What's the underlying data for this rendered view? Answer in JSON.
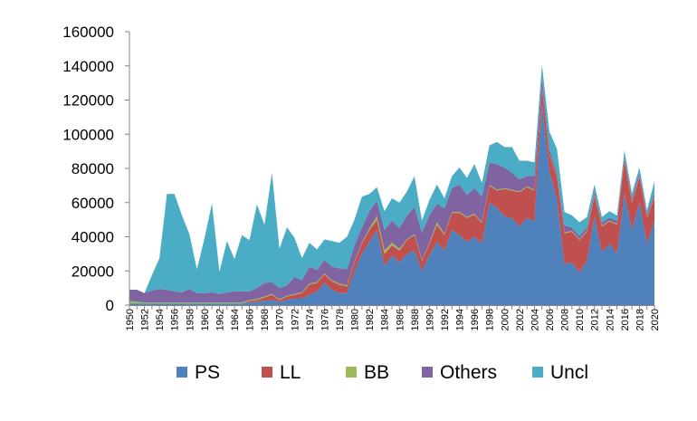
{
  "chart_data": {
    "type": "area",
    "stacked": true,
    "legend_position": "bottom",
    "grid": false,
    "ylim": [
      0,
      160000
    ],
    "y_ticks": [
      0,
      20000,
      40000,
      60000,
      80000,
      100000,
      120000,
      140000,
      160000
    ],
    "y_tick_labels": [
      "0",
      "20000",
      "40000",
      "60000",
      "80000",
      "100000",
      "120000",
      "140000",
      "160000"
    ],
    "x": [
      1950,
      1951,
      1952,
      1953,
      1954,
      1955,
      1956,
      1957,
      1958,
      1959,
      1960,
      1961,
      1962,
      1963,
      1964,
      1965,
      1966,
      1967,
      1968,
      1969,
      1970,
      1971,
      1972,
      1973,
      1974,
      1975,
      1976,
      1977,
      1978,
      1979,
      1980,
      1981,
      1982,
      1983,
      1984,
      1985,
      1986,
      1987,
      1988,
      1989,
      1990,
      1991,
      1992,
      1993,
      1994,
      1995,
      1996,
      1997,
      1998,
      1999,
      2000,
      2001,
      2002,
      2003,
      2004,
      2005,
      2006,
      2007,
      2008,
      2009,
      2010,
      2011,
      2012,
      2013,
      2014,
      2015,
      2016,
      2017,
      2018,
      2019,
      2020
    ],
    "x_tick_labels": [
      "1950",
      "1952",
      "1954",
      "1956",
      "1958",
      "1960",
      "1962",
      "1964",
      "1966",
      "1968",
      "1970",
      "1972",
      "1974",
      "1976",
      "1978",
      "1980",
      "1982",
      "1984",
      "1986",
      "1988",
      "1990",
      "1992",
      "1994",
      "1996",
      "1998",
      "2000",
      "2002",
      "2004",
      "2006",
      "2008",
      "2010",
      "2012",
      "2014",
      "2016",
      "2018",
      "2020"
    ],
    "series": [
      {
        "name": "PS",
        "color": "#4F81BD",
        "values": [
          1000,
          1000,
          1000,
          1000,
          1000,
          1000,
          1000,
          1000,
          1000,
          1000,
          1000,
          1000,
          1000,
          1000,
          1000,
          1000,
          1500,
          2000,
          2500,
          3000,
          2000,
          3000,
          4000,
          4000,
          6000,
          8000,
          13000,
          9000,
          7000,
          7000,
          20000,
          30000,
          37000,
          44000,
          23000,
          29000,
          25000,
          30000,
          32000,
          20000,
          29000,
          37000,
          32000,
          44000,
          41000,
          37000,
          40000,
          36000,
          60000,
          57000,
          52000,
          51000,
          46000,
          51000,
          49000,
          118000,
          78000,
          62000,
          24000,
          25000,
          19000,
          26000,
          52000,
          31000,
          36000,
          30000,
          65000,
          44000,
          60000,
          36000,
          49000
        ]
      },
      {
        "name": "LL",
        "color": "#C0504D",
        "values": [
          0,
          0,
          0,
          0,
          0,
          0,
          0,
          0,
          0,
          0,
          0,
          0,
          0,
          0,
          0,
          0,
          1000,
          1000,
          2000,
          3000,
          1000,
          2000,
          2000,
          3000,
          6000,
          5000,
          5000,
          5000,
          5000,
          4000,
          5000,
          6000,
          7000,
          6000,
          7000,
          6000,
          7000,
          8000,
          9000,
          6000,
          7000,
          10000,
          9000,
          10000,
          13000,
          14000,
          13000,
          12000,
          10000,
          10000,
          16000,
          16000,
          20000,
          18000,
          18000,
          9000,
          10000,
          13000,
          18000,
          18000,
          19000,
          17000,
          12000,
          15000,
          13000,
          17000,
          20000,
          16000,
          15000,
          15000,
          14000
        ]
      },
      {
        "name": "BB",
        "color": "#9BBB59",
        "values": [
          1500,
          1000,
          500,
          500,
          500,
          500,
          500,
          500,
          500,
          500,
          500,
          500,
          500,
          500,
          500,
          500,
          500,
          500,
          500,
          500,
          500,
          500,
          500,
          500,
          500,
          500,
          500,
          500,
          500,
          500,
          500,
          500,
          1000,
          2000,
          2000,
          1500,
          1000,
          500,
          500,
          500,
          500,
          1500,
          500,
          500,
          500,
          500,
          500,
          500,
          500,
          500,
          500,
          500,
          500,
          500,
          500,
          500,
          500,
          500,
          500,
          500,
          500,
          500,
          500,
          500,
          500,
          500,
          500,
          500,
          500,
          500,
          500
        ]
      },
      {
        "name": "Others",
        "color": "#8064A2",
        "values": [
          6500,
          7000,
          5500,
          7000,
          8000,
          7500,
          6500,
          6000,
          8000,
          5500,
          5500,
          6000,
          5000,
          6000,
          6500,
          6500,
          5000,
          6500,
          8000,
          7000,
          6500,
          6000,
          10000,
          7000,
          10000,
          7000,
          8000,
          8000,
          9000,
          9500,
          9500,
          9000,
          10000,
          9000,
          12000,
          13000,
          12000,
          14000,
          16000,
          16000,
          16000,
          11000,
          15000,
          14000,
          16000,
          13000,
          15000,
          15000,
          13000,
          15000,
          12000,
          10000,
          7000,
          6000,
          8000,
          6000,
          3000,
          2000,
          4000,
          2000,
          2000,
          2000,
          2000,
          2000,
          1500,
          2000,
          2000,
          2000,
          2000,
          2000,
          2000
        ]
      },
      {
        "name": "Uncl",
        "color": "#4BACC6",
        "values": [
          0,
          0,
          0,
          9000,
          18000,
          56000,
          57000,
          45000,
          32000,
          14000,
          32000,
          52000,
          13000,
          30000,
          19000,
          33000,
          30000,
          49000,
          34000,
          64000,
          23000,
          34000,
          23000,
          13000,
          14000,
          12000,
          12000,
          15000,
          15000,
          19000,
          15000,
          18000,
          10000,
          8000,
          11000,
          13000,
          15000,
          14000,
          18000,
          7000,
          9000,
          11000,
          6000,
          7000,
          10000,
          10000,
          14000,
          8000,
          10000,
          13000,
          12000,
          15000,
          11000,
          9000,
          8000,
          7000,
          10000,
          14000,
          8000,
          7000,
          8000,
          6000,
          4000,
          3000,
          4000,
          3000,
          3000,
          3000,
          3000,
          2000,
          7000
        ]
      }
    ]
  }
}
